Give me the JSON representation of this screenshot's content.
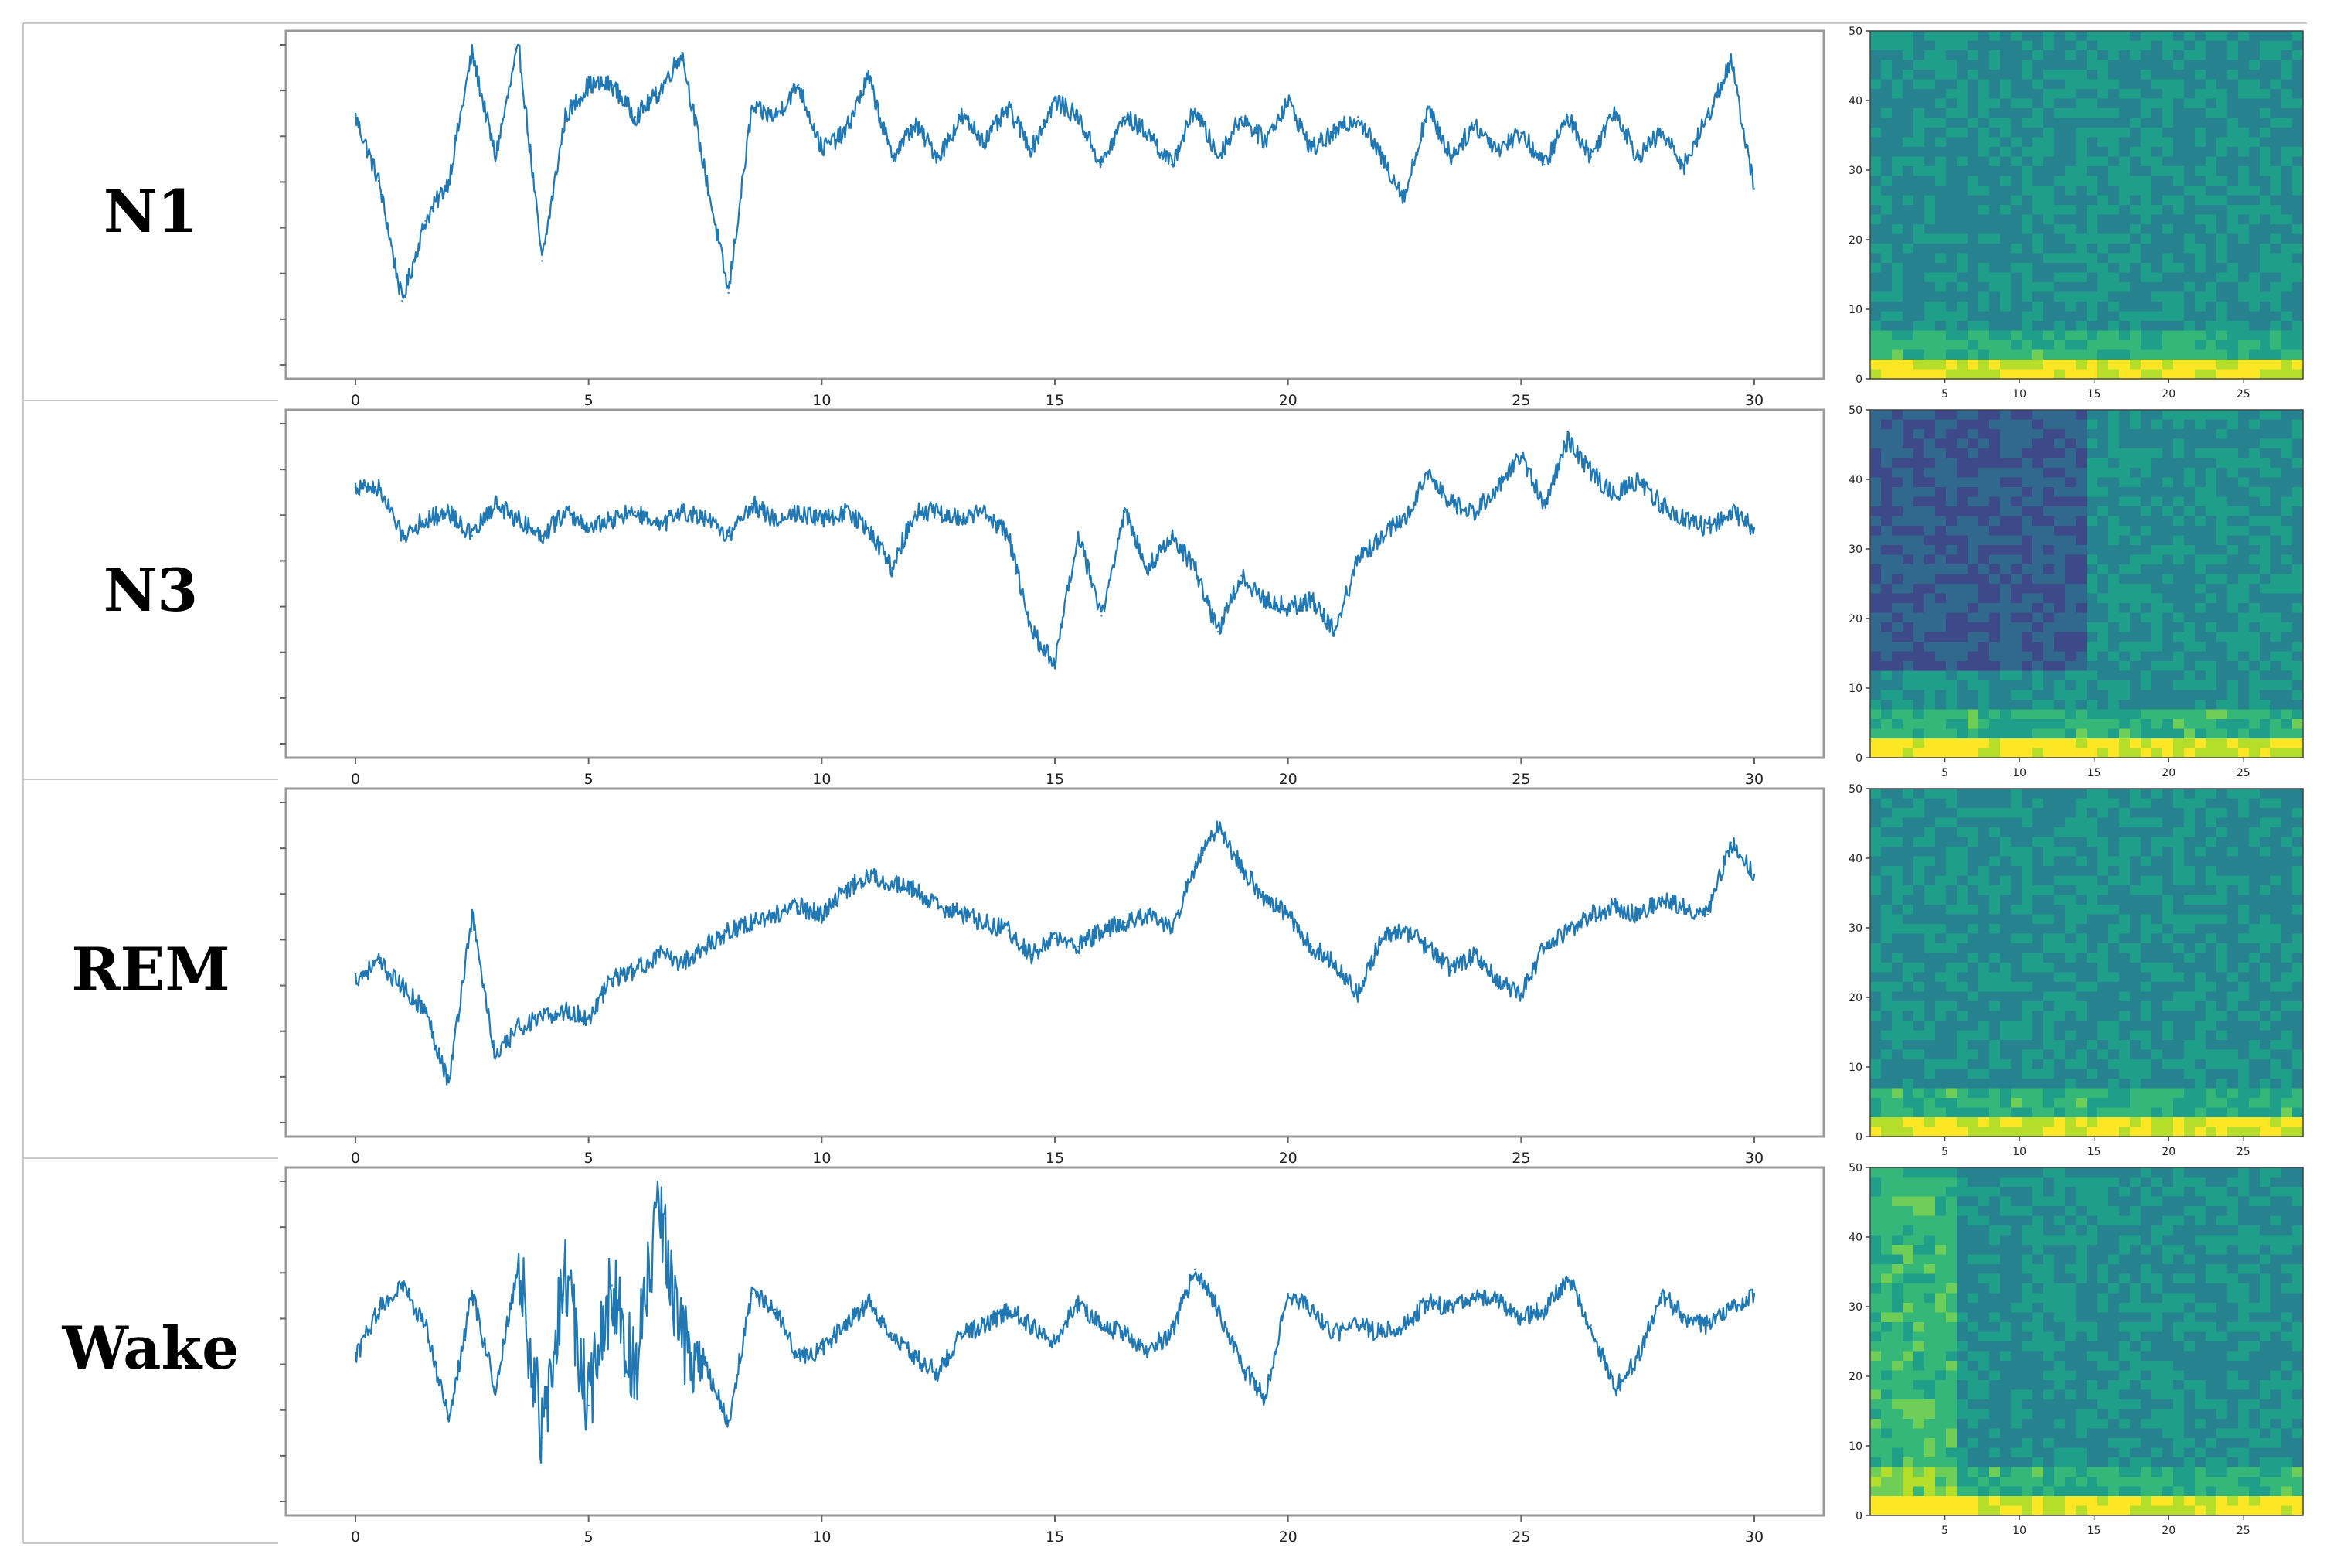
{
  "chart_data": [
    {
      "type": "line",
      "stage": "N1",
      "xlim": [
        0,
        30
      ],
      "x_ticks": [
        "0",
        "5",
        "10",
        "15",
        "20",
        "25",
        "30"
      ],
      "x": [
        0,
        0.5,
        1,
        1.5,
        2,
        2.5,
        3,
        3.5,
        4,
        4.5,
        5,
        5.5,
        6,
        6.5,
        7,
        7.5,
        8,
        8.5,
        9,
        9.5,
        10,
        10.5,
        11,
        11.5,
        12,
        12.5,
        13,
        13.5,
        14,
        14.5,
        15,
        15.5,
        16,
        16.5,
        17,
        17.5,
        18,
        18.5,
        19,
        19.5,
        20,
        20.5,
        21,
        21.5,
        22,
        22.5,
        23,
        23.5,
        24,
        24.5,
        25,
        25.5,
        26,
        26.5,
        27,
        27.5,
        28,
        28.5,
        29,
        29.5,
        30
      ],
      "values": [
        0.55,
        0.15,
        -0.6,
        -0.1,
        0.15,
        0.95,
        0.3,
        1.0,
        -0.35,
        0.55,
        0.75,
        0.75,
        0.55,
        0.7,
        0.95,
        0.2,
        -0.55,
        0.6,
        0.55,
        0.75,
        0.35,
        0.45,
        0.8,
        0.3,
        0.5,
        0.3,
        0.55,
        0.4,
        0.6,
        0.35,
        0.65,
        0.55,
        0.25,
        0.55,
        0.45,
        0.25,
        0.6,
        0.3,
        0.55,
        0.4,
        0.65,
        0.35,
        0.45,
        0.55,
        0.3,
        0.05,
        0.6,
        0.3,
        0.5,
        0.35,
        0.45,
        0.25,
        0.55,
        0.3,
        0.6,
        0.3,
        0.45,
        0.25,
        0.55,
        0.9,
        0.1
      ],
      "spectrogram": {
        "y_ticks": [
          "0",
          "10",
          "20",
          "30",
          "40",
          "50"
        ],
        "x_ticks": [
          "5",
          "10",
          "15",
          "20",
          "25"
        ],
        "ylim": [
          0,
          50
        ],
        "xlim": [
          0,
          29
        ]
      }
    },
    {
      "type": "line",
      "stage": "N3",
      "xlim": [
        0,
        30
      ],
      "x_ticks": [
        "0",
        "5",
        "10",
        "15",
        "20",
        "25",
        "30"
      ],
      "x": [
        0,
        0.5,
        1,
        1.5,
        2,
        2.5,
        3,
        3.5,
        4,
        4.5,
        5,
        5.5,
        6,
        6.5,
        7,
        7.5,
        8,
        8.5,
        9,
        9.5,
        10,
        10.5,
        11,
        11.5,
        12,
        12.5,
        13,
        13.5,
        14,
        14.5,
        15,
        15.5,
        16,
        16.5,
        17,
        17.5,
        18,
        18.5,
        19,
        19.5,
        20,
        20.5,
        21,
        21.5,
        22,
        22.5,
        23,
        23.5,
        24,
        24.5,
        25,
        25.5,
        26,
        26.5,
        27,
        27.5,
        28,
        28.5,
        29,
        29.5,
        30
      ],
      "values": [
        0.6,
        0.6,
        0.3,
        0.4,
        0.45,
        0.3,
        0.5,
        0.4,
        0.3,
        0.45,
        0.35,
        0.4,
        0.45,
        0.35,
        0.45,
        0.4,
        0.3,
        0.5,
        0.4,
        0.45,
        0.4,
        0.45,
        0.35,
        0.1,
        0.45,
        0.45,
        0.4,
        0.45,
        0.3,
        -0.3,
        -0.5,
        0.3,
        -0.2,
        0.45,
        0.1,
        0.3,
        0.1,
        -0.3,
        0.05,
        -0.1,
        -0.15,
        -0.1,
        -0.3,
        0.15,
        0.3,
        0.4,
        0.7,
        0.5,
        0.45,
        0.6,
        0.8,
        0.5,
        0.9,
        0.7,
        0.55,
        0.65,
        0.5,
        0.4,
        0.35,
        0.45,
        0.35
      ],
      "spectrogram": {
        "y_ticks": [
          "0",
          "10",
          "20",
          "30",
          "40",
          "50"
        ],
        "x_ticks": [
          "5",
          "10",
          "15",
          "20",
          "25"
        ],
        "ylim": [
          0,
          50
        ],
        "xlim": [
          0,
          29
        ]
      }
    },
    {
      "type": "line",
      "stage": "REM",
      "xlim": [
        0,
        30
      ],
      "x_ticks": [
        "0",
        "5",
        "10",
        "15",
        "20",
        "25",
        "30"
      ],
      "x": [
        0,
        0.5,
        1,
        1.5,
        2,
        2.5,
        3,
        3.5,
        4,
        4.5,
        5,
        5.5,
        6,
        6.5,
        7,
        7.5,
        8,
        8.5,
        9,
        9.5,
        10,
        10.5,
        11,
        11.5,
        12,
        12.5,
        13,
        13.5,
        14,
        14.5,
        15,
        15.5,
        16,
        16.5,
        17,
        17.5,
        18,
        18.5,
        19,
        19.5,
        20,
        20.5,
        21,
        21.5,
        22,
        22.5,
        23,
        23.5,
        24,
        24.5,
        25,
        25.5,
        26,
        26.5,
        27,
        27.5,
        28,
        28.5,
        29,
        29.5,
        30
      ],
      "values": [
        -0.1,
        0.0,
        -0.15,
        -0.3,
        -0.75,
        0.3,
        -0.6,
        -0.4,
        -0.35,
        -0.3,
        -0.35,
        -0.1,
        -0.05,
        0.05,
        0.0,
        0.1,
        0.2,
        0.25,
        0.3,
        0.35,
        0.3,
        0.45,
        0.55,
        0.5,
        0.45,
        0.35,
        0.3,
        0.25,
        0.2,
        0.05,
        0.15,
        0.1,
        0.2,
        0.25,
        0.3,
        0.2,
        0.6,
        0.85,
        0.6,
        0.4,
        0.3,
        0.1,
        0.0,
        -0.2,
        0.15,
        0.2,
        0.1,
        -0.05,
        0.05,
        -0.1,
        -0.2,
        0.1,
        0.2,
        0.3,
        0.35,
        0.3,
        0.4,
        0.35,
        0.3,
        0.75,
        0.55
      ],
      "spectrogram": {
        "y_ticks": [
          "0",
          "10",
          "20",
          "30",
          "40",
          "50"
        ],
        "x_ticks": [
          "5",
          "10",
          "15",
          "20",
          "25"
        ],
        "ylim": [
          0,
          50
        ],
        "xlim": [
          0,
          29
        ]
      }
    },
    {
      "type": "line",
      "stage": "Wake",
      "xlim": [
        0,
        30
      ],
      "x_ticks": [
        "0",
        "5",
        "10",
        "15",
        "20",
        "25",
        "30"
      ],
      "x": [
        0,
        0.5,
        1,
        1.5,
        2,
        2.5,
        3,
        3.5,
        4,
        4.5,
        5,
        5.5,
        6,
        6.5,
        7,
        7.5,
        8,
        8.5,
        9,
        9.5,
        10,
        10.5,
        11,
        11.5,
        12,
        12.5,
        13,
        13.5,
        14,
        14.5,
        15,
        15.5,
        16,
        16.5,
        17,
        17.5,
        18,
        18.5,
        19,
        19.5,
        20,
        20.5,
        21,
        21.5,
        22,
        22.5,
        23,
        23.5,
        24,
        24.5,
        25,
        25.5,
        26,
        26.5,
        27,
        27.5,
        28,
        28.5,
        29,
        29.5,
        30
      ],
      "values": [
        -0.1,
        0.2,
        0.35,
        0.1,
        -0.5,
        0.3,
        -0.3,
        0.5,
        -0.6,
        0.45,
        -0.4,
        0.35,
        -0.2,
        0.85,
        0.0,
        -0.15,
        -0.5,
        0.3,
        0.2,
        -0.1,
        -0.05,
        0.1,
        0.25,
        0.05,
        -0.1,
        -0.2,
        0.05,
        0.1,
        0.2,
        0.1,
        0.0,
        0.25,
        0.1,
        0.05,
        -0.05,
        0.05,
        0.45,
        0.2,
        -0.15,
        -0.35,
        0.3,
        0.2,
        0.05,
        0.1,
        0.05,
        0.1,
        0.25,
        0.2,
        0.3,
        0.25,
        0.15,
        0.2,
        0.4,
        0.1,
        -0.3,
        -0.1,
        0.3,
        0.15,
        0.1,
        0.2,
        0.3
      ],
      "spectrogram": {
        "y_ticks": [
          "0",
          "10",
          "20",
          "30",
          "40",
          "50"
        ],
        "x_ticks": [
          "5",
          "10",
          "15",
          "20",
          "25"
        ],
        "ylim": [
          0,
          50
        ],
        "xlim": [
          0,
          29
        ]
      }
    }
  ],
  "colors": {
    "signal_line": "#1f77b4",
    "frame": "#9a9a9a"
  }
}
